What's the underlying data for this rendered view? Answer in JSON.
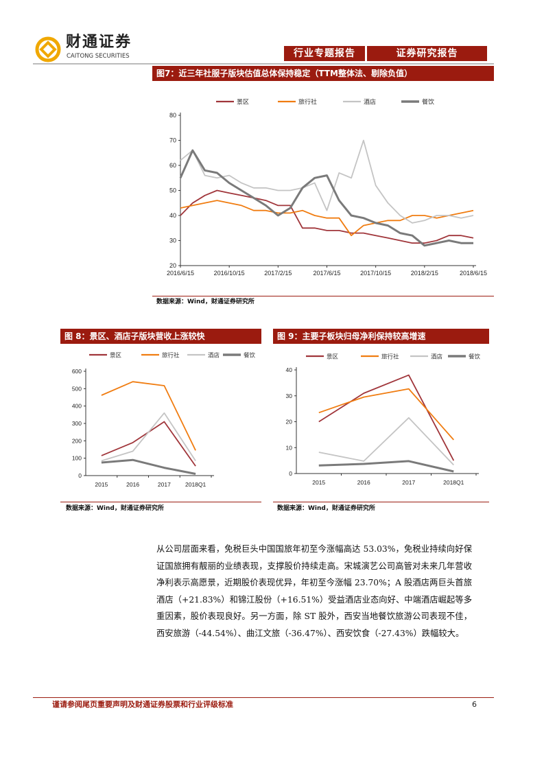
{
  "header": {
    "logo_cn": "财通证券",
    "logo_en": "CAITONG SECURITIES",
    "tag1": "行业专题报告",
    "tag2": "证券研究报告"
  },
  "fig7": {
    "title": "图7：近三年社服子版块估值总体保持稳定（TTM整体法、剔除负值）",
    "source": "数据来源：Wind，财通证券研究所"
  },
  "fig8": {
    "title": "图 8：景区、酒店子版块营收上涨较快",
    "source": "数据来源：Wind，财通证券研究所"
  },
  "fig9": {
    "title": "图 9：主要子板块归母净利保持较高增速",
    "source": "数据来源：Wind，财通证券研究所"
  },
  "body": {
    "paragraph": "从公司层面来看，免税巨头中国国旅年初至今涨幅高达 53.03%，免税业持续向好保证国旅拥有靓丽的业绩表现，支撑股价持续走高。宋城演艺公司高管对未来几年营收净利表示高愿景，近期股价表现优异，年初至今涨幅 23.70%；A 股酒店两巨头首旅酒店（+21.83%）和锦江股份（+16.51%）受益酒店业态向好、中端酒店崛起等多重因素，股价表现良好。另一方面，除 ST 股外，西安当地餐饮旅游公司表现不佳，西安旅游（-44.54%）、曲江文旅（-36.47%）、西安饮食（-27.43%）跌幅较大。"
  },
  "footer": {
    "disclaimer": "谨请参阅尾页重要声明及财通证券股票和行业评级标准",
    "page": "6"
  },
  "colors": {
    "brand": "#9b1b0f",
    "scenic": "#a0353a",
    "travel": "#f07c10",
    "hotel": "#c4c4c4",
    "catering": "#7a7a7a"
  },
  "chart_data": [
    {
      "type": "line",
      "title": "近三年社服子版块估值总体保持稳定（TTM整体法、剔除负值）",
      "ylim": [
        20,
        80
      ],
      "yticks": [
        20,
        30,
        40,
        50,
        60,
        70,
        80
      ],
      "xticks": [
        "2016/6/15",
        "2016/10/15",
        "2017/2/15",
        "2017/6/15",
        "2017/10/15",
        "2018/2/15",
        "2018/6/15"
      ],
      "x": [
        "2016-06",
        "2016-07",
        "2016-08",
        "2016-09",
        "2016-10",
        "2016-11",
        "2016-12",
        "2017-01",
        "2017-02",
        "2017-03",
        "2017-04",
        "2017-05",
        "2017-06",
        "2017-07",
        "2017-08",
        "2017-09",
        "2017-10",
        "2017-11",
        "2017-12",
        "2018-01",
        "2018-02",
        "2018-03",
        "2018-04",
        "2018-05",
        "2018-06"
      ],
      "legend": "top",
      "series": [
        {
          "name": "景区",
          "values": [
            40,
            45,
            48,
            50,
            49,
            48,
            47,
            46,
            44,
            44,
            35,
            35,
            34,
            34,
            33,
            33,
            32,
            31,
            30,
            29,
            29,
            30,
            32,
            32,
            31
          ]
        },
        {
          "name": "旅行社",
          "values": [
            43,
            44,
            45,
            46,
            45,
            44,
            42,
            42,
            41,
            41,
            42,
            40,
            39,
            39,
            32,
            36,
            37,
            38,
            38,
            40,
            40,
            39,
            40,
            41,
            42
          ]
        },
        {
          "name": "酒店",
          "values": [
            62,
            66,
            56,
            55,
            56,
            53,
            51,
            51,
            50,
            50,
            51,
            53,
            42,
            57,
            55,
            70,
            52,
            45,
            40,
            37,
            38,
            40,
            40,
            39,
            40
          ]
        },
        {
          "name": "餐饮",
          "values": [
            55,
            66,
            58,
            57,
            53,
            50,
            47,
            44,
            40,
            43,
            51,
            55,
            56,
            46,
            40,
            39,
            37,
            36,
            33,
            32,
            28,
            29,
            30,
            29,
            29
          ]
        }
      ]
    },
    {
      "type": "line",
      "title": "景区、酒店子版块营收上涨较快",
      "categories": [
        "2015",
        "2016",
        "2017",
        "2018Q1"
      ],
      "ylim": [
        0,
        600
      ],
      "yticks": [
        0,
        100,
        200,
        300,
        400,
        500,
        600
      ],
      "legend": "top",
      "series": [
        {
          "name": "景区",
          "values": [
            115,
            190,
            310,
            55
          ]
        },
        {
          "name": "旅行社",
          "values": [
            462,
            540,
            517,
            145
          ]
        },
        {
          "name": "酒店",
          "values": [
            85,
            140,
            360,
            85
          ]
        },
        {
          "name": "餐饮",
          "values": [
            75,
            90,
            45,
            10
          ]
        }
      ]
    },
    {
      "type": "line",
      "title": "主要子板块归母净利保持较高增速",
      "categories": [
        "2015",
        "2016",
        "2017",
        "2018Q1"
      ],
      "ylim": [
        0,
        40
      ],
      "yticks": [
        0,
        10,
        20,
        30,
        40
      ],
      "legend": "top",
      "series": [
        {
          "name": "景区",
          "values": [
            20,
            31,
            38,
            5
          ]
        },
        {
          "name": "旅行社",
          "values": [
            23.5,
            29.5,
            32.7,
            13
          ]
        },
        {
          "name": "酒店",
          "values": [
            8.2,
            4.8,
            21.5,
            3.3
          ]
        },
        {
          "name": "餐饮",
          "values": [
            3.1,
            3.7,
            4.8,
            0.8
          ]
        }
      ]
    }
  ]
}
